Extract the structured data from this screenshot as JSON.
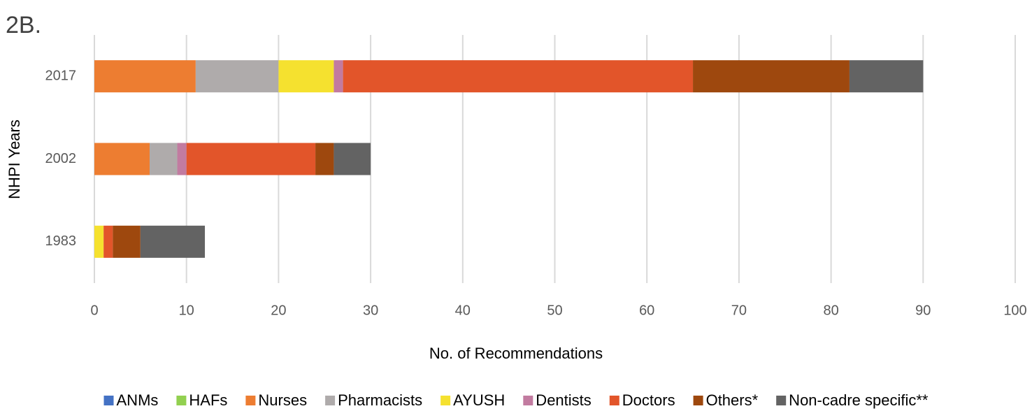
{
  "chart_data": {
    "type": "stacked-bar-horizontal",
    "title": "2B.",
    "x_label": "No. of Recommendations",
    "y_label": "NHPI Years",
    "categories": [
      "1983",
      "2002",
      "2017"
    ],
    "series": [
      {
        "name": "ANMs",
        "color": "#4472c4",
        "values": [
          0,
          0,
          0
        ]
      },
      {
        "name": "HAFs",
        "color": "#92d050",
        "values": [
          0,
          0,
          0
        ]
      },
      {
        "name": "Nurses",
        "color": "#ed7d31",
        "values": [
          0,
          6,
          11
        ]
      },
      {
        "name": "Pharmacists",
        "color": "#afabab",
        "values": [
          0,
          3,
          9
        ]
      },
      {
        "name": "AYUSH",
        "color": "#f5e12f",
        "values": [
          1,
          0,
          6
        ]
      },
      {
        "name": "Dentists",
        "color": "#c27ba0",
        "values": [
          0,
          1,
          1
        ]
      },
      {
        "name": "Doctors",
        "color": "#e2552a",
        "values": [
          1,
          14,
          38
        ]
      },
      {
        "name": "Others*",
        "color": "#9e480e",
        "values": [
          3,
          2,
          17
        ]
      },
      {
        "name": "Non-cadre specific**",
        "color": "#636363",
        "values": [
          7,
          4,
          8
        ]
      }
    ],
    "xlim": [
      0,
      100
    ],
    "xticks": [
      0,
      10,
      20,
      30,
      40,
      50,
      60,
      70,
      80,
      90,
      100
    ],
    "grid": true,
    "legend": "bottom"
  }
}
